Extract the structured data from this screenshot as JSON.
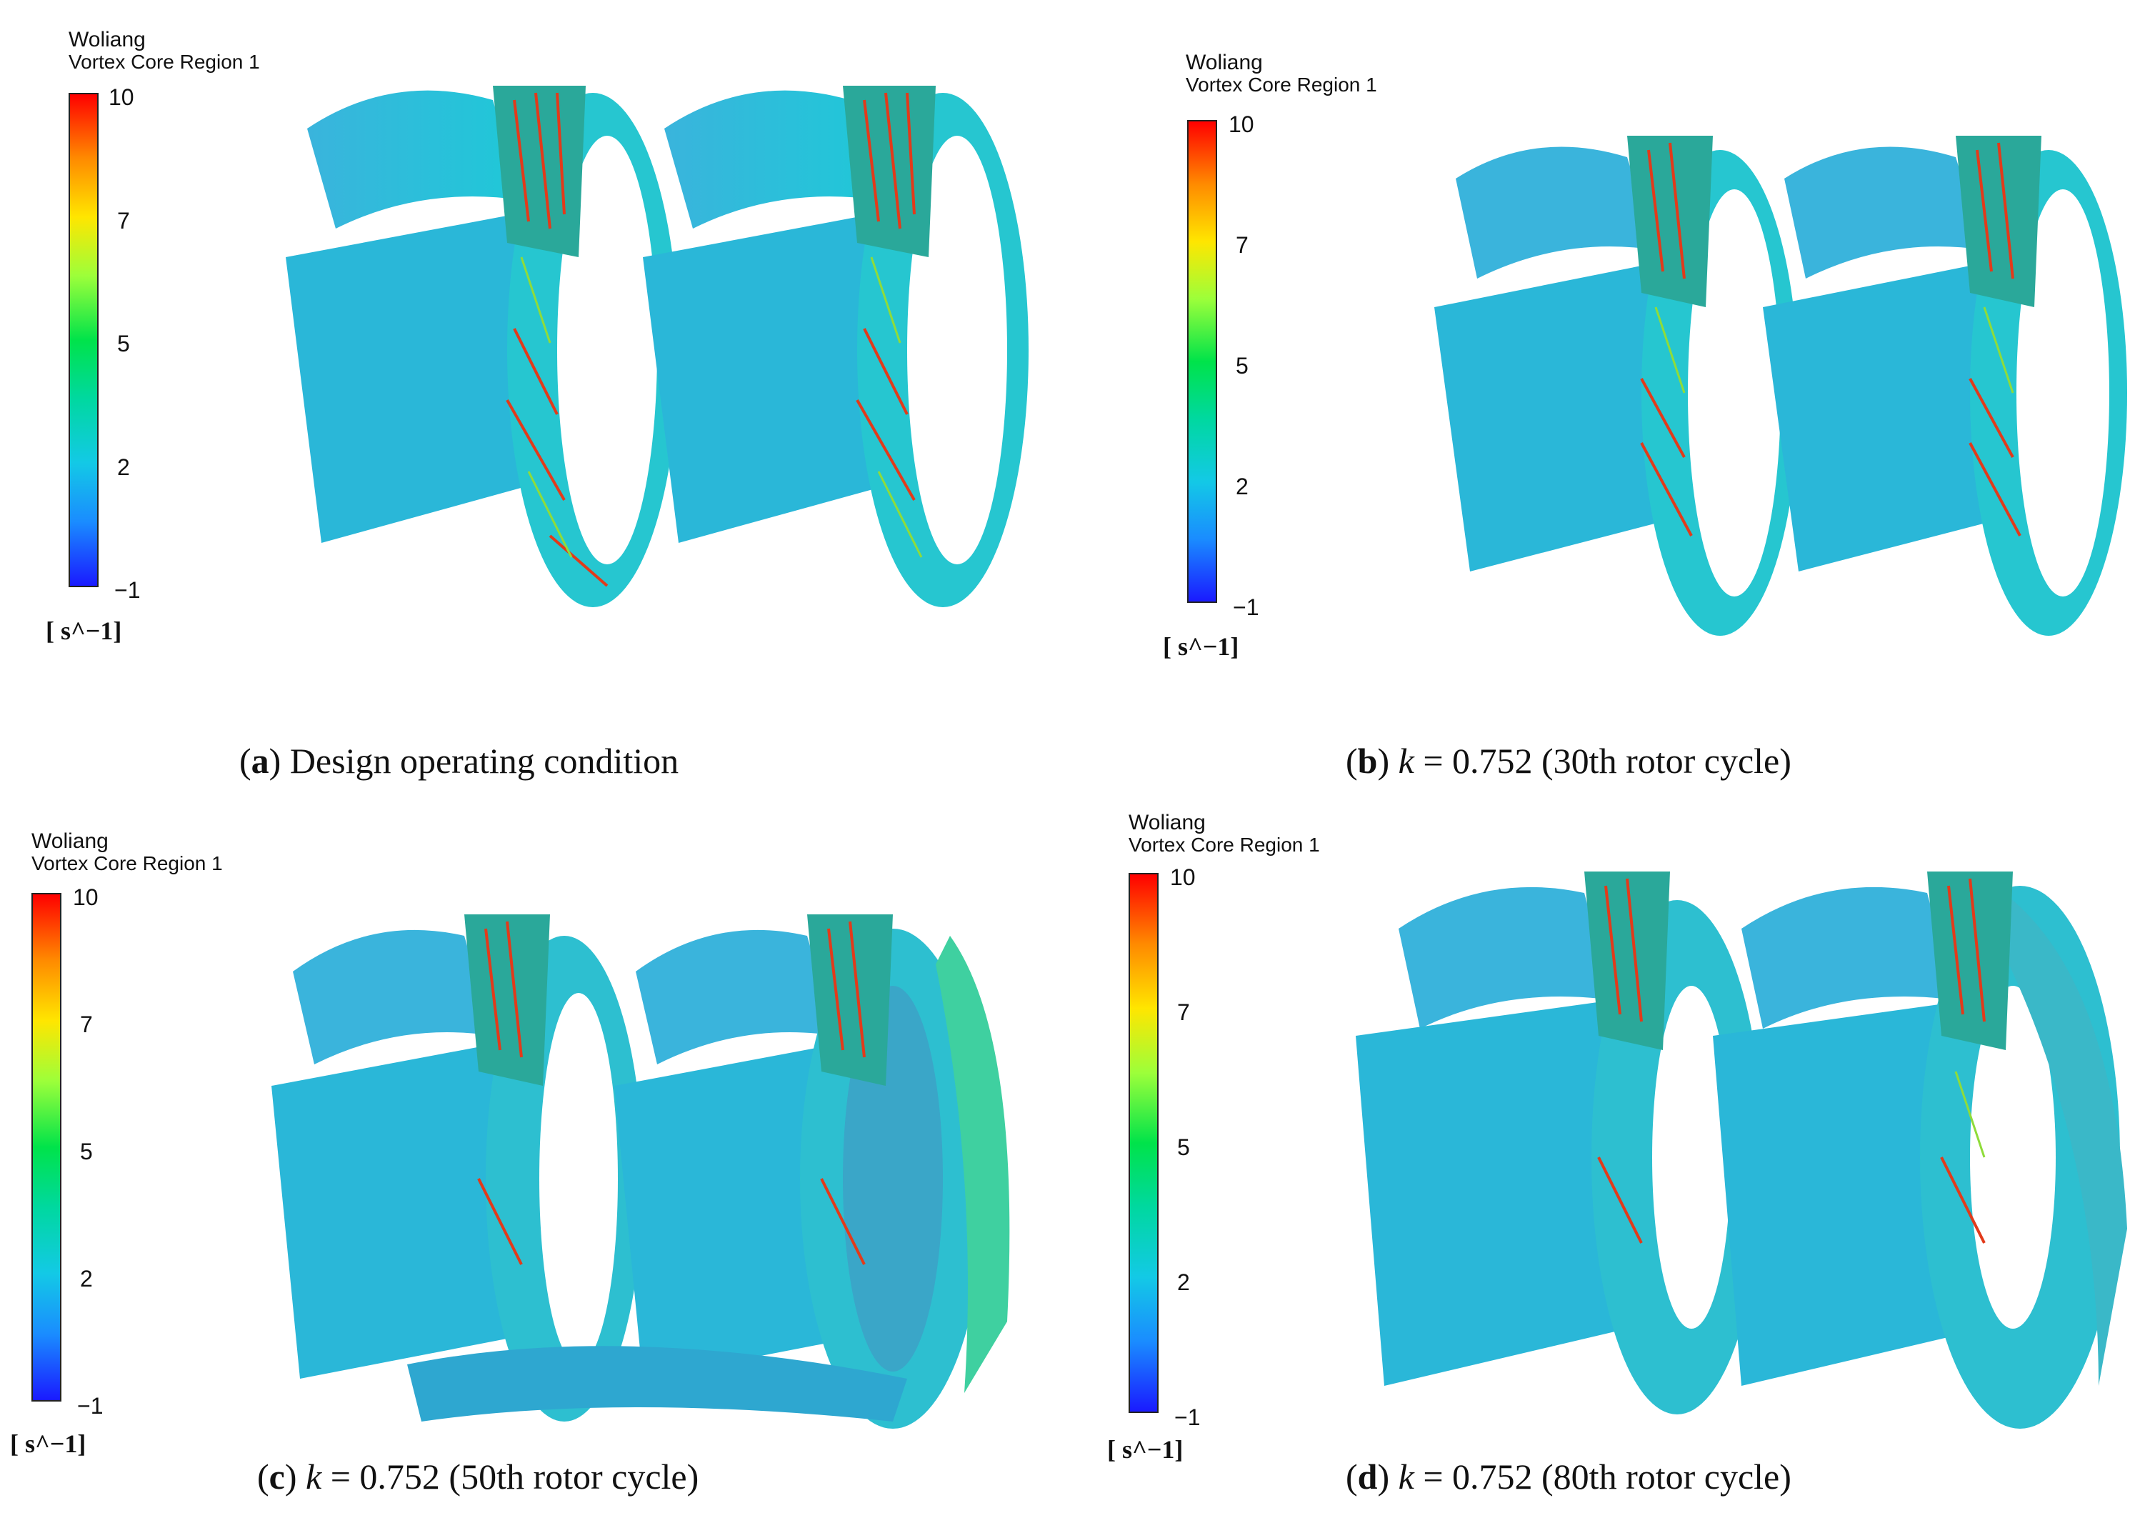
{
  "panels": [
    {
      "legend_title": "Woliang",
      "legend_subtitle": "Vortex Core Region 1",
      "ticks": [
        "10",
        "7",
        "5",
        "2",
        "−1"
      ],
      "unit": "[ s^−1]",
      "caption_letter": "a",
      "caption_text": "Design operating condition"
    },
    {
      "legend_title": "Woliang",
      "legend_subtitle": "Vortex Core Region 1",
      "ticks": [
        "10",
        "7",
        "5",
        "2",
        "−1"
      ],
      "unit": "[ s^−1]",
      "caption_letter": "b",
      "caption_var": "k",
      "caption_text": " = 0.752 (30th rotor cycle)"
    },
    {
      "legend_title": "Woliang",
      "legend_subtitle": "Vortex Core Region 1",
      "ticks": [
        "10",
        "7",
        "5",
        "2",
        "−1"
      ],
      "unit": "[ s^−1]",
      "caption_letter": "c",
      "caption_var": "k",
      "caption_text": " = 0.752 (50th rotor cycle)"
    },
    {
      "legend_title": "Woliang",
      "legend_subtitle": "Vortex Core Region 1",
      "ticks": [
        "10",
        "7",
        "5",
        "2",
        "−1"
      ],
      "unit": "[ s^−1]",
      "caption_letter": "d",
      "caption_var": "k",
      "caption_text": " = 0.752 (80th rotor cycle)"
    }
  ]
}
